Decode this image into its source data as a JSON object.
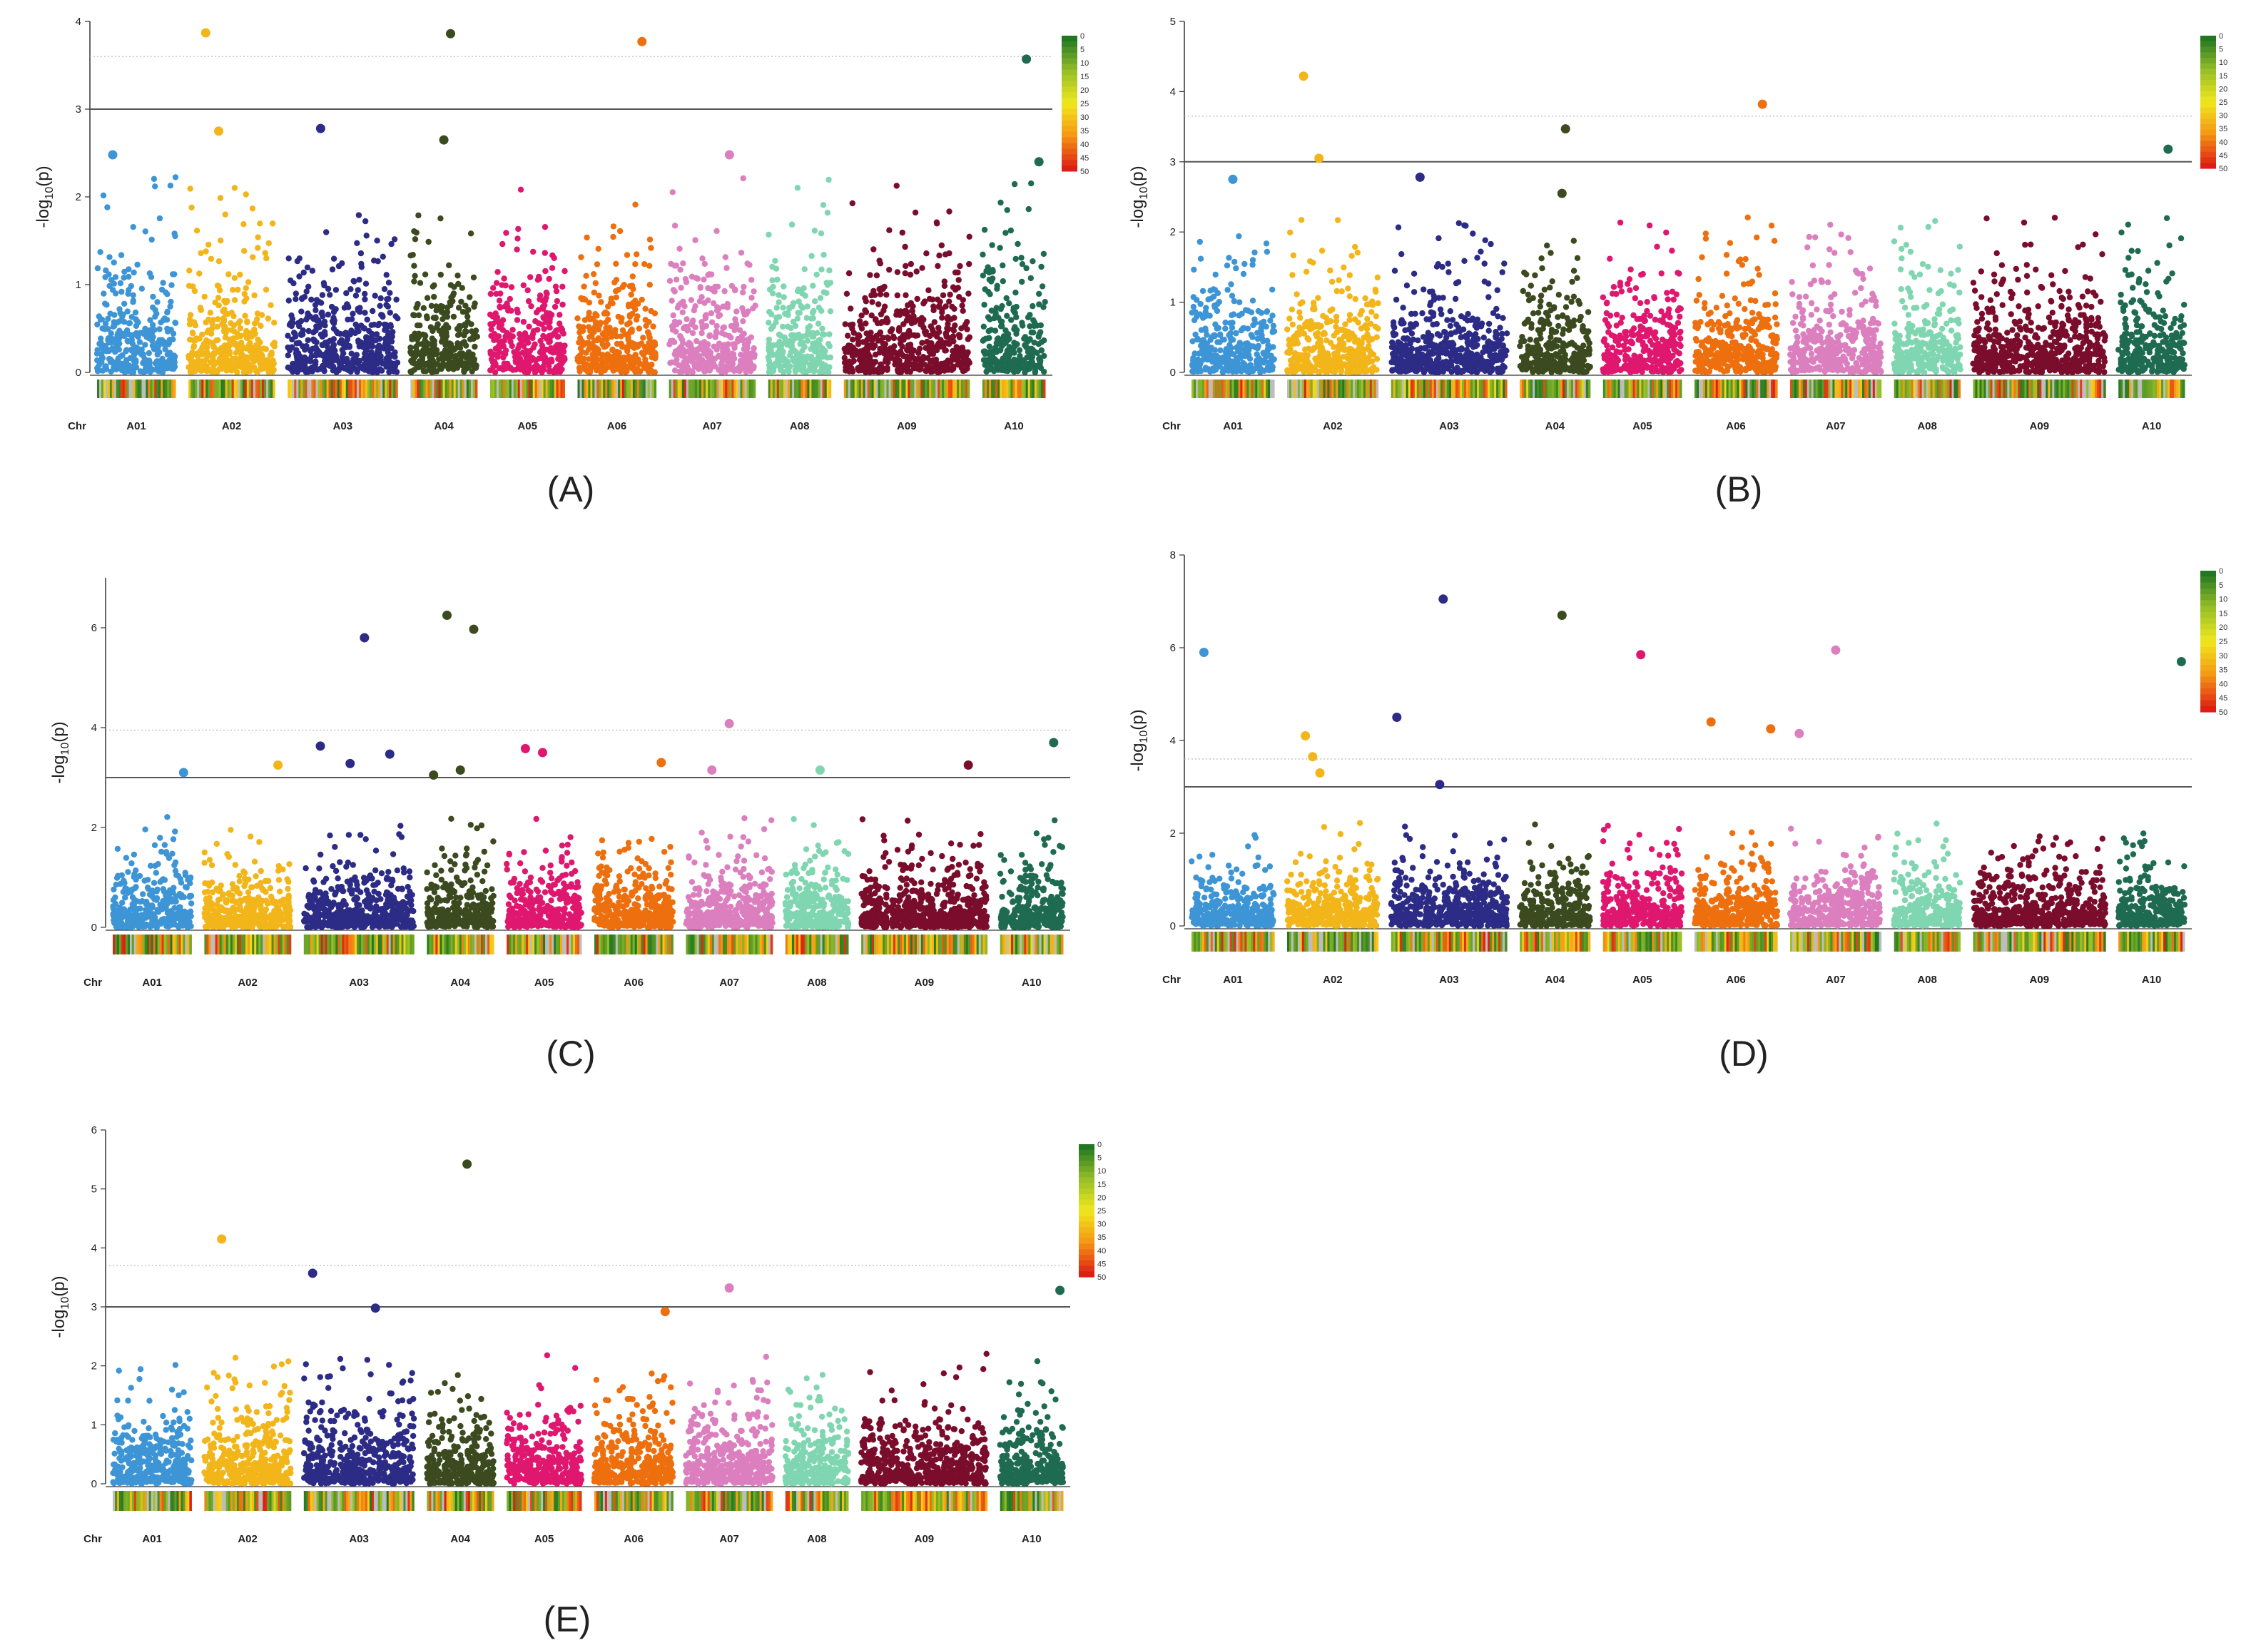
{
  "chr_names": [
    "A01",
    "A02",
    "A03",
    "A04",
    "A05",
    "A06",
    "A07",
    "A08",
    "A09",
    "A10"
  ],
  "chr_colors": [
    "#3d95d6",
    "#f2b51a",
    "#2c2b86",
    "#3b4a1f",
    "#e0176f",
    "#ed6f0e",
    "#dc7fbf",
    "#7fd6b0",
    "#7a0c2c",
    "#1e6b52"
  ],
  "density_legend": {
    "ticks": [
      "0",
      "5",
      "10",
      "15",
      "20",
      "25",
      "30",
      "35",
      "40",
      "45",
      "50"
    ]
  },
  "labels": {
    "chr": "Chr",
    "ylabel_prefix": "-log",
    "ylabel_sub": "10",
    "ylabel_suffix": "(p)"
  },
  "chart_data": [
    {
      "type": "scatter",
      "panel": "(A)",
      "ylim": [
        0,
        4
      ],
      "yticks": [
        "0",
        "1",
        "2",
        "3",
        "4"
      ],
      "threshold": 3,
      "suggestive": 3.6,
      "legend": true,
      "peaks": [
        {
          "chr": "A02",
          "pos": 0.2,
          "y": 3.87
        },
        {
          "chr": "A04",
          "pos": 0.6,
          "y": 3.86
        },
        {
          "chr": "A06",
          "pos": 0.82,
          "y": 3.77
        },
        {
          "chr": "A10",
          "pos": 0.7,
          "y": 3.57
        },
        {
          "chr": "A02",
          "pos": 0.35,
          "y": 2.75
        },
        {
          "chr": "A03",
          "pos": 0.3,
          "y": 2.78
        },
        {
          "chr": "A04",
          "pos": 0.5,
          "y": 2.65
        },
        {
          "chr": "A07",
          "pos": 0.7,
          "y": 2.48
        },
        {
          "chr": "A01",
          "pos": 0.2,
          "y": 2.48
        },
        {
          "chr": "A10",
          "pos": 0.9,
          "y": 2.4
        }
      ]
    },
    {
      "type": "scatter",
      "panel": "(B)",
      "ylim": [
        0,
        5
      ],
      "yticks": [
        "0",
        "1",
        "2",
        "3",
        "4",
        "5"
      ],
      "threshold": 3,
      "suggestive": 3.65,
      "legend": true,
      "peaks": [
        {
          "chr": "A02",
          "pos": 0.18,
          "y": 4.22
        },
        {
          "chr": "A02",
          "pos": 0.35,
          "y": 3.05
        },
        {
          "chr": "A04",
          "pos": 0.65,
          "y": 3.47
        },
        {
          "chr": "A06",
          "pos": 0.82,
          "y": 3.82
        },
        {
          "chr": "A10",
          "pos": 0.75,
          "y": 3.18
        },
        {
          "chr": "A03",
          "pos": 0.25,
          "y": 2.78
        },
        {
          "chr": "A01",
          "pos": 0.5,
          "y": 2.75
        },
        {
          "chr": "A04",
          "pos": 0.6,
          "y": 2.55
        }
      ]
    },
    {
      "type": "scatter",
      "panel": "(C)",
      "ylim": [
        0,
        7
      ],
      "yticks": [
        "0",
        "2",
        "4",
        "6"
      ],
      "threshold": 3,
      "suggestive": 3.95,
      "legend": false,
      "peaks": [
        {
          "chr": "A03",
          "pos": 0.55,
          "y": 5.8
        },
        {
          "chr": "A04",
          "pos": 0.3,
          "y": 6.25
        },
        {
          "chr": "A04",
          "pos": 0.7,
          "y": 5.97
        },
        {
          "chr": "A03",
          "pos": 0.15,
          "y": 3.63
        },
        {
          "chr": "A03",
          "pos": 0.42,
          "y": 3.28
        },
        {
          "chr": "A03",
          "pos": 0.78,
          "y": 3.47
        },
        {
          "chr": "A05",
          "pos": 0.25,
          "y": 3.58
        },
        {
          "chr": "A05",
          "pos": 0.48,
          "y": 3.5
        },
        {
          "chr": "A01",
          "pos": 0.9,
          "y": 3.1
        },
        {
          "chr": "A02",
          "pos": 0.85,
          "y": 3.25
        },
        {
          "chr": "A04",
          "pos": 0.1,
          "y": 3.05
        },
        {
          "chr": "A04",
          "pos": 0.5,
          "y": 3.15
        },
        {
          "chr": "A06",
          "pos": 0.85,
          "y": 3.3
        },
        {
          "chr": "A07",
          "pos": 0.5,
          "y": 4.08
        },
        {
          "chr": "A07",
          "pos": 0.3,
          "y": 3.15
        },
        {
          "chr": "A08",
          "pos": 0.55,
          "y": 3.15
        },
        {
          "chr": "A09",
          "pos": 0.85,
          "y": 3.25
        },
        {
          "chr": "A10",
          "pos": 0.85,
          "y": 3.7
        }
      ]
    },
    {
      "type": "scatter",
      "panel": "(D)",
      "ylim": [
        0,
        8
      ],
      "yticks": [
        "0",
        "2",
        "4",
        "6",
        "8"
      ],
      "threshold": 3,
      "suggestive": 3.6,
      "legend": true,
      "peaks": [
        {
          "chr": "A01",
          "pos": 0.15,
          "y": 5.9
        },
        {
          "chr": "A02",
          "pos": 0.2,
          "y": 4.1
        },
        {
          "chr": "A02",
          "pos": 0.28,
          "y": 3.65
        },
        {
          "chr": "A02",
          "pos": 0.36,
          "y": 3.3
        },
        {
          "chr": "A03",
          "pos": 0.05,
          "y": 4.5
        },
        {
          "chr": "A03",
          "pos": 0.45,
          "y": 7.05
        },
        {
          "chr": "A03",
          "pos": 0.42,
          "y": 3.05
        },
        {
          "chr": "A04",
          "pos": 0.6,
          "y": 6.7
        },
        {
          "chr": "A05",
          "pos": 0.48,
          "y": 5.85
        },
        {
          "chr": "A06",
          "pos": 0.2,
          "y": 4.4
        },
        {
          "chr": "A06",
          "pos": 0.92,
          "y": 4.25
        },
        {
          "chr": "A07",
          "pos": 0.1,
          "y": 4.15
        },
        {
          "chr": "A07",
          "pos": 0.5,
          "y": 5.95
        },
        {
          "chr": "A10",
          "pos": 0.95,
          "y": 5.7
        }
      ]
    },
    {
      "type": "scatter",
      "panel": "(E)",
      "ylim": [
        0,
        6
      ],
      "yticks": [
        "0",
        "1",
        "2",
        "3",
        "4",
        "5",
        "6"
      ],
      "threshold": 3,
      "suggestive": 3.7,
      "legend": true,
      "peaks": [
        {
          "chr": "A02",
          "pos": 0.2,
          "y": 4.15
        },
        {
          "chr": "A03",
          "pos": 0.08,
          "y": 3.57
        },
        {
          "chr": "A04",
          "pos": 0.6,
          "y": 5.42
        },
        {
          "chr": "A07",
          "pos": 0.5,
          "y": 3.32
        },
        {
          "chr": "A10",
          "pos": 0.95,
          "y": 3.28
        },
        {
          "chr": "A03",
          "pos": 0.65,
          "y": 2.98
        },
        {
          "chr": "A06",
          "pos": 0.9,
          "y": 2.92
        }
      ]
    }
  ]
}
